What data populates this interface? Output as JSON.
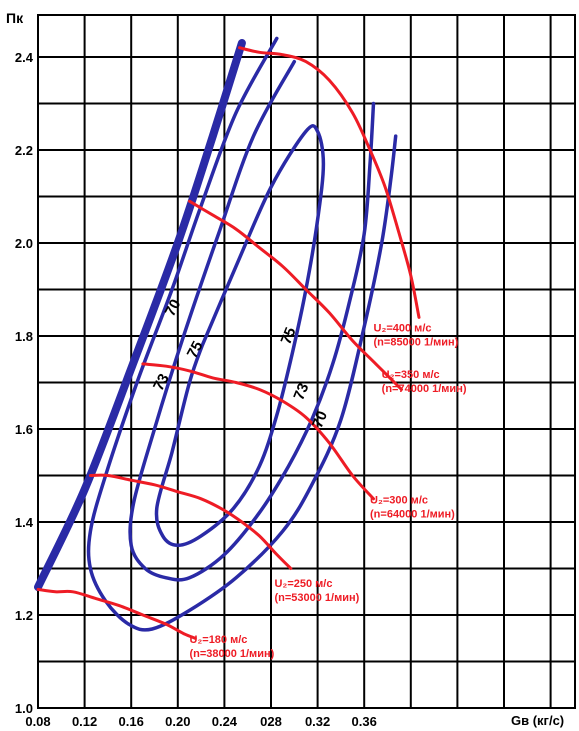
{
  "chart_data": {
    "type": "line",
    "title": "",
    "ylabel": "Пк",
    "xlabel": "Gв (кг/с)",
    "xlim": [
      0.08,
      0.4
    ],
    "ylim": [
      1.0,
      2.5
    ],
    "x_ticks": [
      "0.08",
      "0.12",
      "0.16",
      "0.20",
      "0.24",
      "028",
      "0.32",
      "0.36"
    ],
    "y_ticks": [
      "1.0",
      "1.2",
      "1.4",
      "1.6",
      "1.8",
      "2.0",
      "2.2",
      "2.4"
    ],
    "grid": true,
    "colors": {
      "surge": "#2a2aa6",
      "efficiency": "#2a2aa6",
      "speed": "#ee1c25",
      "grid": "#000000"
    },
    "surge_line": {
      "points": [
        [
          0.08,
          1.26
        ],
        [
          0.12,
          1.47
        ],
        [
          0.16,
          1.73
        ],
        [
          0.2,
          2.0
        ],
        [
          0.23,
          2.23
        ],
        [
          0.255,
          2.43
        ]
      ]
    },
    "efficiency_contours": [
      {
        "label": "70",
        "label_at": [
          0.196,
          1.84
        ],
        "points": [
          [
            0.285,
            2.44
          ],
          [
            0.25,
            2.28
          ],
          [
            0.22,
            2.08
          ],
          [
            0.195,
            1.9
          ],
          [
            0.165,
            1.7
          ],
          [
            0.138,
            1.5
          ],
          [
            0.125,
            1.38
          ],
          [
            0.125,
            1.3
          ],
          [
            0.138,
            1.23
          ],
          [
            0.158,
            1.18
          ],
          [
            0.178,
            1.17
          ],
          [
            0.21,
            1.21
          ],
          [
            0.25,
            1.28
          ],
          [
            0.29,
            1.38
          ],
          [
            0.315,
            1.48
          ],
          [
            0.34,
            1.62
          ],
          [
            0.36,
            1.82
          ],
          [
            0.375,
            2.0
          ],
          [
            0.383,
            2.14
          ],
          [
            0.387,
            2.23
          ]
        ]
      },
      {
        "label": "73",
        "label_at": [
          0.186,
          1.68
        ],
        "points": [
          [
            0.3,
            2.39
          ],
          [
            0.265,
            2.23
          ],
          [
            0.235,
            2.02
          ],
          [
            0.205,
            1.8
          ],
          [
            0.18,
            1.6
          ],
          [
            0.162,
            1.44
          ],
          [
            0.16,
            1.35
          ],
          [
            0.172,
            1.3
          ],
          [
            0.19,
            1.28
          ],
          [
            0.21,
            1.28
          ],
          [
            0.24,
            1.33
          ],
          [
            0.27,
            1.42
          ],
          [
            0.295,
            1.52
          ],
          [
            0.315,
            1.62
          ],
          [
            0.333,
            1.74
          ],
          [
            0.348,
            1.88
          ],
          [
            0.36,
            2.02
          ],
          [
            0.365,
            2.17
          ],
          [
            0.368,
            2.3
          ]
        ]
      },
      {
        "label": "75",
        "label_at": [
          0.215,
          1.75
        ],
        "points": [
          [
            0.221,
            1.78
          ],
          [
            0.21,
            1.7
          ],
          [
            0.195,
            1.55
          ],
          [
            0.182,
            1.43
          ],
          [
            0.187,
            1.37
          ],
          [
            0.2,
            1.35
          ],
          [
            0.22,
            1.37
          ],
          [
            0.248,
            1.43
          ],
          [
            0.27,
            1.52
          ],
          [
            0.285,
            1.63
          ],
          [
            0.298,
            1.76
          ],
          [
            0.31,
            1.9
          ],
          [
            0.32,
            2.05
          ],
          [
            0.325,
            2.17
          ],
          [
            0.32,
            2.24
          ],
          [
            0.31,
            2.24
          ],
          [
            0.28,
            2.12
          ],
          [
            0.25,
            1.95
          ],
          [
            0.221,
            1.78
          ]
        ]
      }
    ],
    "speed_lines": [
      {
        "label_u": "U₂=180 м/с",
        "label_n": "(n=38000 1/мин)",
        "label_at": [
          0.21,
          1.14
        ],
        "points": [
          [
            0.08,
            1.255
          ],
          [
            0.095,
            1.25
          ],
          [
            0.11,
            1.25
          ],
          [
            0.13,
            1.235
          ],
          [
            0.15,
            1.22
          ],
          [
            0.17,
            1.2
          ],
          [
            0.19,
            1.18
          ],
          [
            0.205,
            1.16
          ],
          [
            0.215,
            1.15
          ]
        ]
      },
      {
        "label_u": "U₂=250 м/с",
        "label_n": "(n=53000 1/мин)",
        "label_at": [
          0.283,
          1.26
        ],
        "points": [
          [
            0.125,
            1.5
          ],
          [
            0.14,
            1.5
          ],
          [
            0.16,
            1.49
          ],
          [
            0.18,
            1.48
          ],
          [
            0.2,
            1.465
          ],
          [
            0.22,
            1.45
          ],
          [
            0.24,
            1.425
          ],
          [
            0.255,
            1.4
          ],
          [
            0.27,
            1.37
          ],
          [
            0.285,
            1.33
          ],
          [
            0.297,
            1.3
          ]
        ]
      },
      {
        "label_u": "U₂=300 м/с",
        "label_n": "(n=64000 1/мин)",
        "label_at": [
          0.365,
          1.44
        ],
        "points": [
          [
            0.17,
            1.74
          ],
          [
            0.19,
            1.735
          ],
          [
            0.21,
            1.725
          ],
          [
            0.23,
            1.71
          ],
          [
            0.25,
            1.7
          ],
          [
            0.27,
            1.685
          ],
          [
            0.29,
            1.66
          ],
          [
            0.31,
            1.625
          ],
          [
            0.33,
            1.57
          ],
          [
            0.35,
            1.5
          ],
          [
            0.368,
            1.45
          ]
        ]
      },
      {
        "label_u": "U₂=350 м/с",
        "label_n": "(n=74000 1/мин)",
        "label_at": [
          0.375,
          1.71
        ],
        "points": [
          [
            0.21,
            2.09
          ],
          [
            0.23,
            2.06
          ],
          [
            0.25,
            2.03
          ],
          [
            0.27,
            1.99
          ],
          [
            0.29,
            1.95
          ],
          [
            0.31,
            1.9
          ],
          [
            0.33,
            1.85
          ],
          [
            0.35,
            1.79
          ],
          [
            0.37,
            1.74
          ],
          [
            0.392,
            1.685
          ]
        ]
      },
      {
        "label_u": "U₂=400 м/с",
        "label_n": "(n=85000 1/мин)",
        "label_at": [
          0.368,
          1.81
        ],
        "points": [
          [
            0.253,
            2.42
          ],
          [
            0.27,
            2.41
          ],
          [
            0.29,
            2.405
          ],
          [
            0.31,
            2.39
          ],
          [
            0.33,
            2.35
          ],
          [
            0.35,
            2.28
          ],
          [
            0.365,
            2.2
          ],
          [
            0.378,
            2.12
          ],
          [
            0.39,
            2.02
          ],
          [
            0.4,
            1.93
          ],
          [
            0.407,
            1.84
          ]
        ]
      }
    ]
  }
}
